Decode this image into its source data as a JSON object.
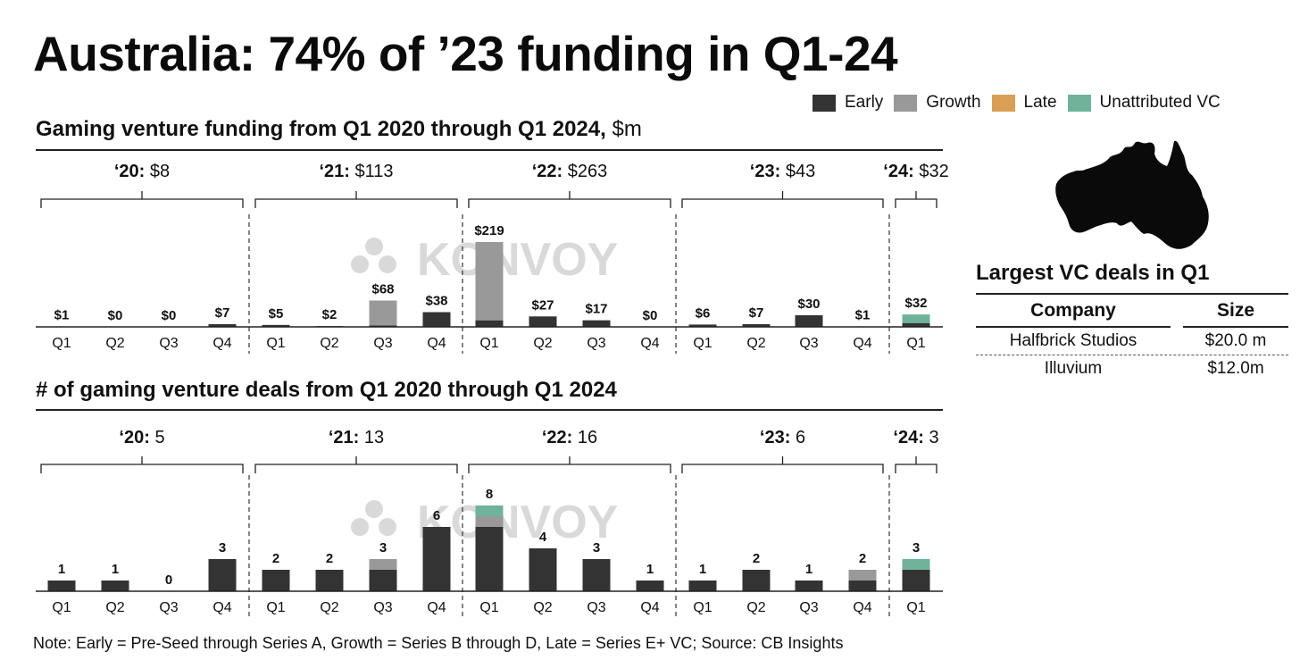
{
  "title": "Australia: 74% of ’23 funding in Q1-24",
  "legend": [
    {
      "name": "Early",
      "color": "#333333"
    },
    {
      "name": "Growth",
      "color": "#999999"
    },
    {
      "name": "Late",
      "color": "#D9A055"
    },
    {
      "name": "Unattributed VC",
      "color": "#6FB39B"
    }
  ],
  "watermark": "KONVOY",
  "note": "Note: Early = Pre-Seed through Series A, Growth = Series B through D, Late = Series E+ VC; Source: CB Insights",
  "deals_panel": {
    "title": "Largest VC deals in Q1",
    "headers": [
      "Company",
      "Size"
    ],
    "rows": [
      [
        "Halfbrick Studios",
        "$20.0 m"
      ],
      [
        "Illuvium",
        "$12.0m"
      ]
    ]
  },
  "chart_data": [
    {
      "type": "bar",
      "stacked": true,
      "title": "Gaming venture funding from Q1 2020 through Q1 2024,",
      "title_unit": "$m",
      "xlabel": "",
      "ylabel": "",
      "categories": [
        "Q1",
        "Q2",
        "Q3",
        "Q4",
        "Q1",
        "Q2",
        "Q3",
        "Q4",
        "Q1",
        "Q2",
        "Q3",
        "Q4",
        "Q1",
        "Q2",
        "Q3",
        "Q4",
        "Q1"
      ],
      "years": [
        {
          "label": "‘20:",
          "total": "$8",
          "quarters": 4
        },
        {
          "label": "‘21:",
          "total": "$113",
          "quarters": 4
        },
        {
          "label": "‘22:",
          "total": "$263",
          "quarters": 4
        },
        {
          "label": "‘23:",
          "total": "$43",
          "quarters": 4
        },
        {
          "label": "‘24:",
          "total": "$32",
          "quarters": 1
        }
      ],
      "series": [
        {
          "name": "Early",
          "values": [
            1,
            0,
            0,
            7,
            5,
            2,
            4,
            38,
            17,
            27,
            17,
            0,
            6,
            7,
            30,
            1,
            10
          ]
        },
        {
          "name": "Growth",
          "values": [
            0,
            0,
            0,
            0,
            0,
            0,
            64,
            0,
            202,
            0,
            0,
            0,
            0,
            0,
            0,
            0,
            0
          ]
        },
        {
          "name": "Late",
          "values": [
            0,
            0,
            0,
            0,
            0,
            0,
            0,
            0,
            0,
            0,
            0,
            0,
            0,
            0,
            0,
            0,
            0
          ]
        },
        {
          "name": "Unattributed VC",
          "values": [
            0,
            0,
            0,
            0,
            0,
            0,
            0,
            0,
            0,
            0,
            0,
            0,
            0,
            0,
            0,
            0,
            22
          ]
        }
      ],
      "data_labels": [
        "$1",
        "$0",
        "$0",
        "$7",
        "$5",
        "$2",
        "$68",
        "$38",
        "$219",
        "$27",
        "$17",
        "$0",
        "$6",
        "$7",
        "$30",
        "$1",
        "$32"
      ],
      "ylim": [
        0,
        219
      ],
      "grid": false,
      "legend": "top-right"
    },
    {
      "type": "bar",
      "stacked": true,
      "title": "# of gaming venture deals from Q1 2020 through Q1 2024",
      "xlabel": "",
      "ylabel": "",
      "categories": [
        "Q1",
        "Q2",
        "Q3",
        "Q4",
        "Q1",
        "Q2",
        "Q3",
        "Q4",
        "Q1",
        "Q2",
        "Q3",
        "Q4",
        "Q1",
        "Q2",
        "Q3",
        "Q4",
        "Q1"
      ],
      "years": [
        {
          "label": "‘20:",
          "total": "5",
          "quarters": 4
        },
        {
          "label": "‘21:",
          "total": "13",
          "quarters": 4
        },
        {
          "label": "‘22:",
          "total": "16",
          "quarters": 4
        },
        {
          "label": "‘23:",
          "total": "6",
          "quarters": 4
        },
        {
          "label": "‘24:",
          "total": "3",
          "quarters": 1
        }
      ],
      "series": [
        {
          "name": "Early",
          "values": [
            1,
            1,
            0,
            3,
            2,
            2,
            2,
            6,
            6,
            4,
            3,
            1,
            1,
            2,
            1,
            1,
            2
          ]
        },
        {
          "name": "Growth",
          "values": [
            0,
            0,
            0,
            0,
            0,
            0,
            1,
            0,
            1,
            0,
            0,
            0,
            0,
            0,
            0,
            1,
            0
          ]
        },
        {
          "name": "Late",
          "values": [
            0,
            0,
            0,
            0,
            0,
            0,
            0,
            0,
            0,
            0,
            0,
            0,
            0,
            0,
            0,
            0,
            0
          ]
        },
        {
          "name": "Unattributed VC",
          "values": [
            0,
            0,
            0,
            0,
            0,
            0,
            0,
            0,
            1,
            0,
            0,
            0,
            0,
            0,
            0,
            0,
            1
          ]
        }
      ],
      "data_labels": [
        "1",
        "1",
        "0",
        "3",
        "2",
        "2",
        "3",
        "6",
        "8",
        "4",
        "3",
        "1",
        "1",
        "2",
        "1",
        "2",
        "3"
      ],
      "ylim": [
        0,
        8
      ],
      "grid": false,
      "legend": "top-right"
    }
  ]
}
